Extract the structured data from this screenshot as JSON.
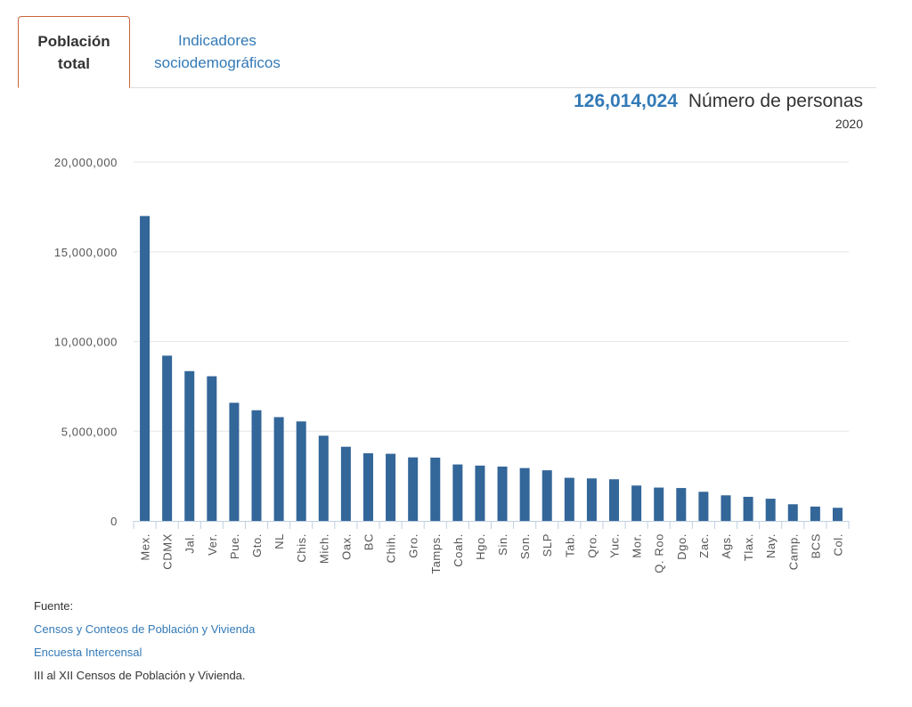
{
  "tabs": [
    {
      "label_line1": "Población",
      "label_line2": "total"
    },
    {
      "label_line1": "Indicadores",
      "label_line2": "sociodemográficos"
    }
  ],
  "summary": {
    "total": "126,014,024",
    "label": "Número de personas",
    "year": "2020"
  },
  "colors": {
    "bar": "#336699",
    "accent": "#337ab7",
    "active_tab_border": "#c8643b"
  },
  "chart_data": {
    "type": "bar",
    "categories": [
      "Mex.",
      "CDMX",
      "Jal.",
      "Ver.",
      "Pue.",
      "Gto.",
      "NL",
      "Chis.",
      "Mich.",
      "Oax.",
      "BC",
      "Chih.",
      "Gro.",
      "Tamps.",
      "Coah.",
      "Hgo.",
      "Sin.",
      "Son.",
      "SLP",
      "Tab.",
      "Qro.",
      "Yuc.",
      "Mor.",
      "Q. Roo",
      "Dgo.",
      "Zac.",
      "Ags.",
      "Tlax.",
      "Nay.",
      "Camp.",
      "BCS",
      "Col."
    ],
    "values": [
      16992418,
      9209944,
      8348151,
      8062579,
      6583278,
      6166934,
      5784442,
      5543828,
      4748846,
      4132148,
      3769020,
      3741869,
      3540685,
      3527735,
      3146771,
      3082841,
      3026943,
      2944840,
      2822255,
      2402598,
      2368467,
      2320898,
      1971520,
      1857985,
      1832650,
      1622138,
      1425607,
      1342977,
      1235456,
      928363,
      798447,
      731391
    ],
    "yticks": [
      "0",
      "5,000,000",
      "10,000,000",
      "15,000,000",
      "20,000,000"
    ],
    "ylim": [
      0,
      20000000
    ],
    "grid": true,
    "legend": "none"
  },
  "source": {
    "heading": "Fuente:",
    "links": [
      "Censos y Conteos de Población y Vivienda",
      "Encuesta Intercensal"
    ],
    "note": "III al XII Censos de Población y Vivienda."
  }
}
